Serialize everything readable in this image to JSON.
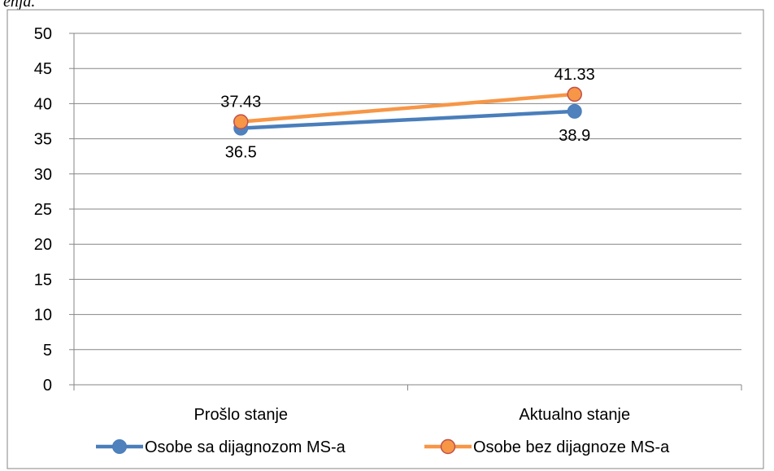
{
  "top_fragment": "enja.",
  "chart_data": {
    "type": "line",
    "categories": [
      "Prošlo stanje",
      "Aktualno stanje"
    ],
    "ylim": [
      0,
      50
    ],
    "yticks": [
      0,
      5,
      10,
      15,
      20,
      25,
      30,
      35,
      40,
      45,
      50
    ],
    "grid": true,
    "legend_position": "bottom",
    "series": [
      {
        "name": "Osobe sa dijagnozom MS-a",
        "values": [
          36.5,
          38.9
        ],
        "labels": [
          "36.5",
          "38.9"
        ],
        "color": "#4a7ebb",
        "marker_fill": "#4f81bd"
      },
      {
        "name": "Osobe bez dijagnoze MS-a",
        "values": [
          37.43,
          41.33
        ],
        "labels": [
          "37.43",
          "41.33"
        ],
        "color": "#f79646",
        "marker_fill": "#f79646",
        "marker_stroke": "#c0504d"
      }
    ]
  }
}
